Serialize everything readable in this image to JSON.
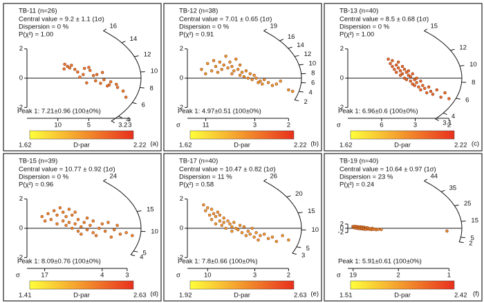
{
  "chart_data": [
    {
      "type": "radial",
      "title": "TB-11 (n=26)",
      "stats": [
        "Central value = 9.2 ± 1.1  (1σ)",
        "Dispersion = 0 %",
        "P(χ²) = 1.00"
      ],
      "peak": "Peak 1: 7.21±0.96 (100±0%)",
      "panel_label": "(a)",
      "central_value": 9.2,
      "xlim": [
        0,
        0.36
      ],
      "xticks": [
        {
          "value": 0.1,
          "label": "10"
        },
        {
          "value": 0.2,
          "label": "5"
        },
        {
          "value": 0.333,
          "label": "3"
        }
      ],
      "ylim": [
        -2.6,
        2.6
      ],
      "yticks": [
        -2,
        0,
        2
      ],
      "arc_ticks": [
        16,
        14,
        12,
        10,
        8,
        6,
        4,
        3.2
      ],
      "x": [
        0.122,
        0.131,
        0.12,
        0.144,
        0.155,
        0.164,
        0.186,
        0.2,
        0.204,
        0.182,
        0.215,
        0.226,
        0.244,
        0.249,
        0.222,
        0.193,
        0.238,
        0.266,
        0.271,
        0.293,
        0.289,
        0.311,
        0.32,
        0.26,
        0.171,
        0.138
      ],
      "values": [
        0.95,
        0.81,
        0.63,
        0.88,
        0.6,
        0.42,
        0.67,
        0.74,
        0.53,
        0.25,
        0.18,
        0.25,
        0.39,
        -0.11,
        -0.18,
        -0.32,
        -0.35,
        -0.46,
        -0.25,
        -0.63,
        -0.42,
        -0.88,
        -1.3,
        -0.53,
        0.07,
        0.7
      ],
      "point_color": "#ec7a2c",
      "colorbar": {
        "label": "D-par",
        "min": 1.62,
        "max": 2.22,
        "colors": [
          "#ffff3c",
          "#e8301e"
        ]
      }
    },
    {
      "type": "radial",
      "title": "TB-12 (n=38)",
      "stats": [
        "Central value = 7.01 ± 0.65  (1σ)",
        "Dispersion = 0 %",
        "P(χ²) = 0.91"
      ],
      "peak": "Peak 1: 4.97±0.51 (100±0%)",
      "panel_label": "(b)",
      "x_label": "σ",
      "central_value": 7.01,
      "xlim": [
        0,
        0.55
      ],
      "xticks": [
        {
          "value": 0.091,
          "label": "11"
        },
        {
          "value": 0.333,
          "label": "3"
        },
        {
          "value": 0.5,
          "label": "2"
        }
      ],
      "ylim": [
        -2.6,
        2.6
      ],
      "yticks": [
        -2,
        0,
        2
      ],
      "arc_ticks": [
        19,
        16,
        14,
        12,
        10,
        8,
        6,
        4,
        2
      ],
      "x": [
        0.07,
        0.09,
        0.1,
        0.12,
        0.13,
        0.14,
        0.15,
        0.16,
        0.17,
        0.18,
        0.19,
        0.2,
        0.21,
        0.22,
        0.22,
        0.23,
        0.24,
        0.25,
        0.26,
        0.26,
        0.27,
        0.28,
        0.29,
        0.3,
        0.31,
        0.32,
        0.33,
        0.34,
        0.35,
        0.36,
        0.37,
        0.38,
        0.4,
        0.42,
        0.44,
        0.46,
        0.5,
        0.52
      ],
      "values": [
        0.6,
        0.3,
        1.0,
        0.5,
        1.2,
        0.8,
        0.4,
        1.1,
        0.6,
        0.9,
        1.5,
        0.7,
        1.1,
        0.3,
        0.8,
        0.5,
        1.3,
        0.6,
        0.2,
        0.9,
        0.4,
        0.1,
        0.5,
        0.0,
        0.3,
        -0.1,
        0.2,
        0.0,
        -0.3,
        -0.2,
        -0.4,
        -0.1,
        -0.3,
        -0.5,
        -0.4,
        -0.2,
        -0.8,
        -0.9
      ],
      "point_color": "#ec9a2c",
      "colorbar": {
        "label": "D-par",
        "min": 1.62,
        "max": 2.22,
        "colors": [
          "#ffff3c",
          "#e8301e"
        ]
      }
    },
    {
      "type": "radial",
      "title": "TB-13 (n=40)",
      "stats": [
        "Central value = 8.5 ± 0.68  (1σ)",
        "Dispersion = 0 %",
        "P(χ²) = 1.00"
      ],
      "peak": "Peak 1: 6.96±0.6 (100±0%)",
      "panel_label": "(c)",
      "x_label": "σ",
      "central_value": 8.5,
      "xlim": [
        0,
        0.55
      ],
      "xticks": [
        {
          "value": 0.167,
          "label": "6"
        },
        {
          "value": 0.333,
          "label": "3"
        },
        {
          "value": 0.5,
          "label": "2"
        }
      ],
      "ylim": [
        -2.6,
        2.6
      ],
      "yticks": [
        -2,
        0,
        2
      ],
      "arc_ticks": [
        15,
        12,
        10,
        8,
        6,
        4,
        3.1
      ],
      "x": [
        0.2,
        0.21,
        0.22,
        0.22,
        0.23,
        0.24,
        0.24,
        0.25,
        0.25,
        0.26,
        0.26,
        0.27,
        0.27,
        0.28,
        0.28,
        0.29,
        0.29,
        0.3,
        0.3,
        0.31,
        0.31,
        0.32,
        0.32,
        0.33,
        0.33,
        0.34,
        0.34,
        0.35,
        0.36,
        0.36,
        0.37,
        0.38,
        0.39,
        0.4,
        0.41,
        0.42,
        0.44,
        0.46,
        0.48,
        0.5
      ],
      "values": [
        1.3,
        1.0,
        0.8,
        1.2,
        0.6,
        0.9,
        0.4,
        0.7,
        1.1,
        0.5,
        0.2,
        0.8,
        0.3,
        0.6,
        0.0,
        0.4,
        -0.1,
        0.2,
        0.5,
        -0.2,
        0.1,
        -0.4,
        0.3,
        -0.1,
        -0.5,
        0.0,
        -0.3,
        -0.6,
        -0.2,
        -0.8,
        -0.5,
        -0.7,
        -1.0,
        -0.6,
        -0.9,
        -1.1,
        -0.8,
        -1.3,
        -1.0,
        -1.4
      ],
      "point_color": "#e86a2a",
      "colorbar": {
        "label": "D-par",
        "min": 1.62,
        "max": 2.22,
        "colors": [
          "#ffff3c",
          "#e8301e"
        ]
      }
    },
    {
      "type": "radial",
      "title": "TB-15 (n=39)",
      "stats": [
        "Central value = 10.77 ± 0.92  (1σ)",
        "Dispersion = 0 %",
        "P(χ²) = 0.96"
      ],
      "peak": "Peak 1: 8.09±0.76 (100±0%)",
      "panel_label": "(d)",
      "x_label": "σ",
      "central_value": 10.77,
      "xlim": [
        0,
        0.37
      ],
      "xticks": [
        {
          "value": 0.0588,
          "label": "17"
        },
        {
          "value": 0.25,
          "label": "4"
        },
        {
          "value": 0.333,
          "label": "3"
        }
      ],
      "ylim": [
        -2.6,
        2.6
      ],
      "yticks": [
        -2,
        0,
        2
      ],
      "arc_ticks": [
        24,
        15,
        10,
        5,
        4
      ],
      "x": [
        0.05,
        0.06,
        0.07,
        0.08,
        0.09,
        0.1,
        0.1,
        0.11,
        0.12,
        0.12,
        0.13,
        0.13,
        0.14,
        0.14,
        0.15,
        0.15,
        0.16,
        0.16,
        0.17,
        0.17,
        0.18,
        0.18,
        0.19,
        0.2,
        0.2,
        0.21,
        0.22,
        0.22,
        0.23,
        0.24,
        0.25,
        0.26,
        0.27,
        0.28,
        0.29,
        0.3,
        0.31,
        0.33,
        0.35
      ],
      "values": [
        0.8,
        0.5,
        1.0,
        0.6,
        1.2,
        0.3,
        0.9,
        1.4,
        0.5,
        1.1,
        0.2,
        0.8,
        1.3,
        0.4,
        0.0,
        0.9,
        0.3,
        1.1,
        -0.2,
        0.6,
        0.1,
        -0.4,
        0.4,
        -0.1,
        0.7,
        0.2,
        -0.3,
        0.5,
        -0.5,
        0.0,
        0.3,
        -0.2,
        0.4,
        -0.6,
        -0.1,
        0.2,
        -0.4,
        -0.3,
        -0.5
      ],
      "point_color": "#ee8a2c",
      "colorbar": {
        "label": "D-par",
        "min": 1.41,
        "max": 2.63,
        "colors": [
          "#ffff3c",
          "#e8301e"
        ]
      }
    },
    {
      "type": "radial",
      "title": "TB-17 (n=40)",
      "stats": [
        "Central value = 10.47 ± 0.82  (1σ)",
        "Dispersion = 11 %",
        "P(χ²) = 0.58"
      ],
      "peak": "Peak 1: 7.8±0.66 (100±0%)",
      "panel_label": "(e)",
      "x_label": "σ",
      "central_value": 10.47,
      "xlim": [
        0,
        0.55
      ],
      "xticks": [
        {
          "value": 0.1,
          "label": "10"
        },
        {
          "value": 0.333,
          "label": "3"
        },
        {
          "value": 0.5,
          "label": "2"
        }
      ],
      "ylim": [
        -2.6,
        2.6
      ],
      "yticks": [
        -2,
        0,
        2
      ],
      "arc_ticks": [
        26,
        20,
        15,
        10,
        5,
        3
      ],
      "x": [
        0.08,
        0.09,
        0.1,
        0.11,
        0.12,
        0.12,
        0.13,
        0.14,
        0.14,
        0.15,
        0.16,
        0.16,
        0.17,
        0.18,
        0.18,
        0.19,
        0.2,
        0.21,
        0.22,
        0.22,
        0.23,
        0.24,
        0.25,
        0.26,
        0.27,
        0.28,
        0.29,
        0.3,
        0.31,
        0.32,
        0.33,
        0.34,
        0.35,
        0.36,
        0.38,
        0.4,
        0.42,
        0.44,
        0.47,
        0.5
      ],
      "values": [
        1.6,
        1.2,
        1.4,
        0.9,
        1.3,
        0.6,
        1.0,
        0.8,
        0.3,
        1.1,
        0.5,
        0.9,
        0.2,
        0.7,
        0.4,
        0.0,
        0.5,
        0.3,
        0.1,
        -0.2,
        0.4,
        0.0,
        -0.1,
        0.2,
        -0.3,
        0.1,
        -0.5,
        -0.2,
        -0.4,
        0.0,
        -0.6,
        -0.3,
        -0.8,
        -0.5,
        -0.4,
        -0.7,
        -0.6,
        -0.9,
        -0.5,
        -0.8
      ],
      "point_color": "#f0a030",
      "colorbar": {
        "label": "D-par",
        "min": 1.92,
        "max": 2.63,
        "colors": [
          "#ffff3c",
          "#e8301e"
        ]
      }
    },
    {
      "type": "radial",
      "title": "TB-19 (n=40)",
      "stats": [
        "Central value = 10.64 ± 0.97  (1σ)",
        "Dispersion = 23 %",
        "P(χ²) = 0.24"
      ],
      "peak": "Peak 1: 5.91±0.61 (100±0%)",
      "panel_label": "(f)",
      "x_label": "σ",
      "central_value": 10.64,
      "xlim": [
        0,
        1.1
      ],
      "xticks": [
        {
          "value": 0.0526,
          "label": "19"
        },
        {
          "value": 0.5,
          "label": "2"
        },
        {
          "value": 1,
          "label": "1"
        }
      ],
      "ylim": [
        -18,
        18
      ],
      "yticks": [
        -2,
        0,
        2
      ],
      "arc_ticks": [
        44,
        35,
        25,
        15,
        5,
        2
      ],
      "x": [
        0.05,
        0.06,
        0.06,
        0.07,
        0.07,
        0.08,
        0.08,
        0.09,
        0.09,
        0.1,
        0.1,
        0.11,
        0.11,
        0.12,
        0.12,
        0.13,
        0.13,
        0.14,
        0.14,
        0.15,
        0.15,
        0.16,
        0.16,
        0.17,
        0.17,
        0.18,
        0.18,
        0.19,
        0.2,
        0.2,
        0.21,
        0.22,
        0.23,
        0.24,
        0.25,
        0.26,
        0.28,
        0.3,
        0.33,
        0.98
      ],
      "values": [
        0.8,
        0.4,
        0.9,
        0.2,
        0.6,
        0.9,
        0.1,
        0.5,
        0.8,
        0.3,
        -0.1,
        0.6,
        0.2,
        0.7,
        -0.2,
        0.4,
        0.0,
        0.6,
        -0.3,
        0.3,
        -0.1,
        0.5,
        -0.4,
        0.2,
        -0.2,
        0.0,
        -0.5,
        0.3,
        -0.3,
        0.1,
        -0.4,
        -0.2,
        -0.6,
        0.0,
        -0.5,
        -0.3,
        -0.7,
        -0.5,
        -0.6,
        -1.3
      ],
      "point_color": "#ec8a2c",
      "colorbar": {
        "label": "D-par",
        "min": 1.51,
        "max": 2.42,
        "colors": [
          "#ffff3c",
          "#e8301e"
        ]
      }
    }
  ]
}
